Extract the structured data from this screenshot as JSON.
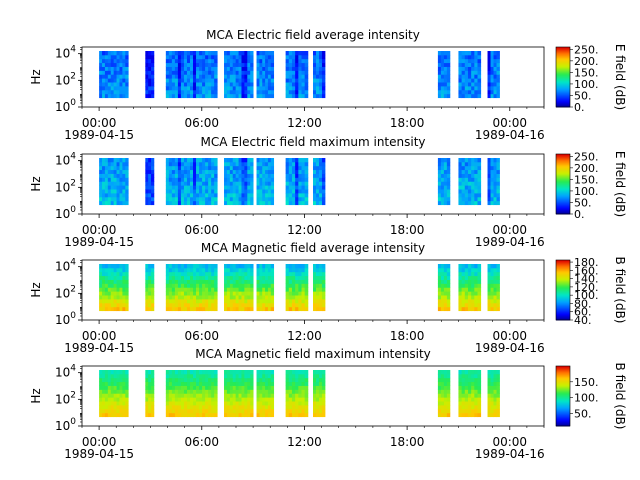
{
  "figure": {
    "title": ""
  },
  "chart_data": [
    {
      "type": "heatmap",
      "title": "MCA  Electric field average intensity",
      "ylabel": "Hz",
      "yscale": "log",
      "ylim_exp": [
        0,
        4.5
      ],
      "y_tick_exps": [
        0,
        2,
        4
      ],
      "x_range_hours": [
        -1.0,
        26.0
      ],
      "x_ticks": [
        {
          "h": 0,
          "time": "00:00",
          "date": "1989-04-15"
        },
        {
          "h": 6,
          "time": "06:00",
          "date": ""
        },
        {
          "h": 12,
          "time": "12:00",
          "date": ""
        },
        {
          "h": 18,
          "time": "18:00",
          "date": ""
        },
        {
          "h": 24,
          "time": "00:00",
          "date": "1989-04-16"
        }
      ],
      "data_hours": [
        [
          0.0,
          1.7
        ],
        [
          2.7,
          3.2
        ],
        [
          3.9,
          6.9
        ],
        [
          7.3,
          9.0
        ],
        [
          9.2,
          10.2
        ],
        [
          10.9,
          12.2
        ],
        [
          12.5,
          13.2
        ],
        [
          19.8,
          20.5
        ],
        [
          21.0,
          22.3
        ],
        [
          22.7,
          23.4
        ]
      ],
      "colorbar": {
        "label": "E field (dB)",
        "vmin": 0,
        "vmax": 260,
        "ticks": [
          "0.",
          "50.",
          "100.",
          "150.",
          "200.",
          "250."
        ],
        "tick_values": [
          0,
          50,
          100,
          150,
          200,
          250
        ]
      },
      "level_dB": {
        "base": 75,
        "min": 20,
        "max": 120
      }
    },
    {
      "type": "heatmap",
      "title": "MCA  Electric field maximum intensity",
      "ylabel": "Hz",
      "yscale": "log",
      "ylim_exp": [
        0,
        4.5
      ],
      "y_tick_exps": [
        0,
        2,
        4
      ],
      "x_range_hours": [
        -1.0,
        26.0
      ],
      "x_ticks": [
        {
          "h": 0,
          "time": "00:00",
          "date": "1989-04-15"
        },
        {
          "h": 6,
          "time": "06:00",
          "date": ""
        },
        {
          "h": 12,
          "time": "12:00",
          "date": ""
        },
        {
          "h": 18,
          "time": "18:00",
          "date": ""
        },
        {
          "h": 24,
          "time": "00:00",
          "date": "1989-04-16"
        }
      ],
      "data_hours": [
        [
          0.0,
          1.7
        ],
        [
          2.7,
          3.2
        ],
        [
          3.9,
          6.9
        ],
        [
          7.3,
          9.0
        ],
        [
          9.2,
          10.2
        ],
        [
          10.9,
          12.2
        ],
        [
          12.5,
          13.2
        ],
        [
          19.8,
          20.5
        ],
        [
          21.0,
          22.3
        ],
        [
          22.7,
          23.4
        ]
      ],
      "colorbar": {
        "label": "E field (dB)",
        "vmin": 0,
        "vmax": 260,
        "ticks": [
          "0.",
          "50.",
          "100.",
          "150.",
          "200.",
          "250."
        ],
        "tick_values": [
          0,
          50,
          100,
          150,
          200,
          250
        ]
      },
      "level_dB": {
        "base": 90,
        "min": 30,
        "max": 250
      }
    },
    {
      "type": "heatmap",
      "title": "MCA  Magnetic field average intensity",
      "ylabel": "Hz",
      "yscale": "log",
      "ylim_exp": [
        0,
        4.5
      ],
      "y_tick_exps": [
        0,
        2,
        4
      ],
      "x_range_hours": [
        -1.0,
        26.0
      ],
      "x_ticks": [
        {
          "h": 0,
          "time": "00:00",
          "date": "1989-04-15"
        },
        {
          "h": 6,
          "time": "06:00",
          "date": ""
        },
        {
          "h": 12,
          "time": "12:00",
          "date": ""
        },
        {
          "h": 18,
          "time": "18:00",
          "date": ""
        },
        {
          "h": 24,
          "time": "00:00",
          "date": "1989-04-16"
        }
      ],
      "data_hours": [
        [
          0.0,
          1.7
        ],
        [
          2.7,
          3.2
        ],
        [
          3.9,
          6.9
        ],
        [
          7.3,
          9.0
        ],
        [
          9.2,
          10.2
        ],
        [
          10.9,
          12.2
        ],
        [
          12.5,
          13.2
        ],
        [
          19.8,
          20.5
        ],
        [
          21.0,
          22.3
        ],
        [
          22.7,
          23.4
        ]
      ],
      "colorbar": {
        "label": "B field (dB)",
        "vmin": 40,
        "vmax": 185,
        "ticks": [
          "40.",
          "60.",
          "80.",
          "100.",
          "120.",
          "140.",
          "160.",
          "180."
        ],
        "tick_values": [
          40,
          60,
          80,
          100,
          120,
          140,
          160,
          180
        ]
      },
      "level_dB": {
        "base": 100,
        "min": 55,
        "max": 180
      }
    },
    {
      "type": "heatmap",
      "title": "MCA  Magnetic field maximum intensity",
      "ylabel": "Hz",
      "yscale": "log",
      "ylim_exp": [
        0,
        4.5
      ],
      "y_tick_exps": [
        0,
        2,
        4
      ],
      "x_range_hours": [
        -1.0,
        26.0
      ],
      "x_ticks": [
        {
          "h": 0,
          "time": "00:00",
          "date": "1989-04-15"
        },
        {
          "h": 6,
          "time": "06:00",
          "date": ""
        },
        {
          "h": 12,
          "time": "12:00",
          "date": ""
        },
        {
          "h": 18,
          "time": "18:00",
          "date": ""
        },
        {
          "h": 24,
          "time": "00:00",
          "date": "1989-04-16"
        }
      ],
      "data_hours": [
        [
          0.0,
          1.7
        ],
        [
          2.7,
          3.2
        ],
        [
          3.9,
          6.9
        ],
        [
          7.3,
          9.0
        ],
        [
          9.2,
          10.2
        ],
        [
          10.9,
          12.2
        ],
        [
          12.5,
          13.2
        ],
        [
          19.8,
          20.5
        ],
        [
          21.0,
          22.3
        ],
        [
          22.7,
          23.4
        ]
      ],
      "colorbar": {
        "label": "B field (dB)",
        "vmin": 10,
        "vmax": 200,
        "ticks": [
          "50.",
          "100.",
          "150."
        ],
        "tick_values": [
          50,
          100,
          150
        ]
      },
      "level_dB": {
        "base": 105,
        "min": 40,
        "max": 195
      }
    }
  ]
}
